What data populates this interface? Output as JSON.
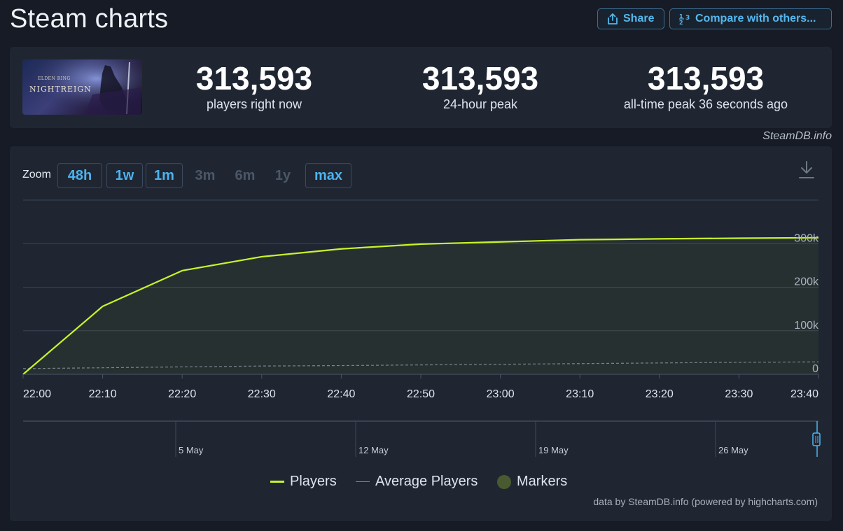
{
  "page": {
    "title": "Steam charts"
  },
  "toolbar": {
    "share_label": "Share",
    "compare_label": "Compare with others..."
  },
  "stats": [
    {
      "value": "313,593",
      "label": "players right now"
    },
    {
      "value": "313,593",
      "label": "24-hour peak"
    },
    {
      "value": "313,593",
      "label": "all-time peak 36 seconds ago"
    }
  ],
  "game": {
    "thumb_small": "ELDEN RING",
    "thumb_title": "NIGHTREIGN"
  },
  "watermark": "SteamDB.info",
  "zoom": {
    "label": "Zoom",
    "buttons": [
      {
        "label": "48h",
        "enabled": true
      },
      {
        "label": "1w",
        "enabled": true
      },
      {
        "label": "1m",
        "enabled": true
      },
      {
        "label": "3m",
        "enabled": false
      },
      {
        "label": "6m",
        "enabled": false
      },
      {
        "label": "1y",
        "enabled": false
      },
      {
        "label": "max",
        "enabled": true
      }
    ]
  },
  "chart_data": {
    "type": "line",
    "x": [
      "22:00",
      "22:10",
      "22:20",
      "22:30",
      "22:40",
      "22:50",
      "23:00",
      "23:10",
      "23:20",
      "23:30",
      "23:40"
    ],
    "series": [
      {
        "name": "Players",
        "color": "#c8f528",
        "values": [
          0,
          156000,
          238000,
          270000,
          288000,
          299000,
          304000,
          309000,
          311000,
          312500,
          313593
        ]
      },
      {
        "name": "Average Players",
        "color": "#7a838f",
        "values": [
          13000,
          15000,
          17000,
          19000,
          20000,
          21500,
          23000,
          24500,
          26000,
          27500,
          28500
        ]
      }
    ],
    "ylim": [
      0,
      400000
    ],
    "yticks": [
      0,
      100000,
      200000,
      300000
    ],
    "ytick_labels": [
      "0",
      "100k",
      "200k",
      "300k"
    ],
    "grid": true,
    "navigator": {
      "labels": [
        "5 May",
        "12 May",
        "19 May",
        "26 May"
      ]
    },
    "legend": {
      "placement": "bottom-center",
      "items": [
        {
          "label": "Players",
          "color": "#c8f528"
        },
        {
          "label": "Average Players",
          "color": "#7a838f"
        },
        {
          "label": "Markers",
          "color": "#4a5a30"
        }
      ]
    },
    "credits": "data by SteamDB.info (powered by highcharts.com)"
  }
}
